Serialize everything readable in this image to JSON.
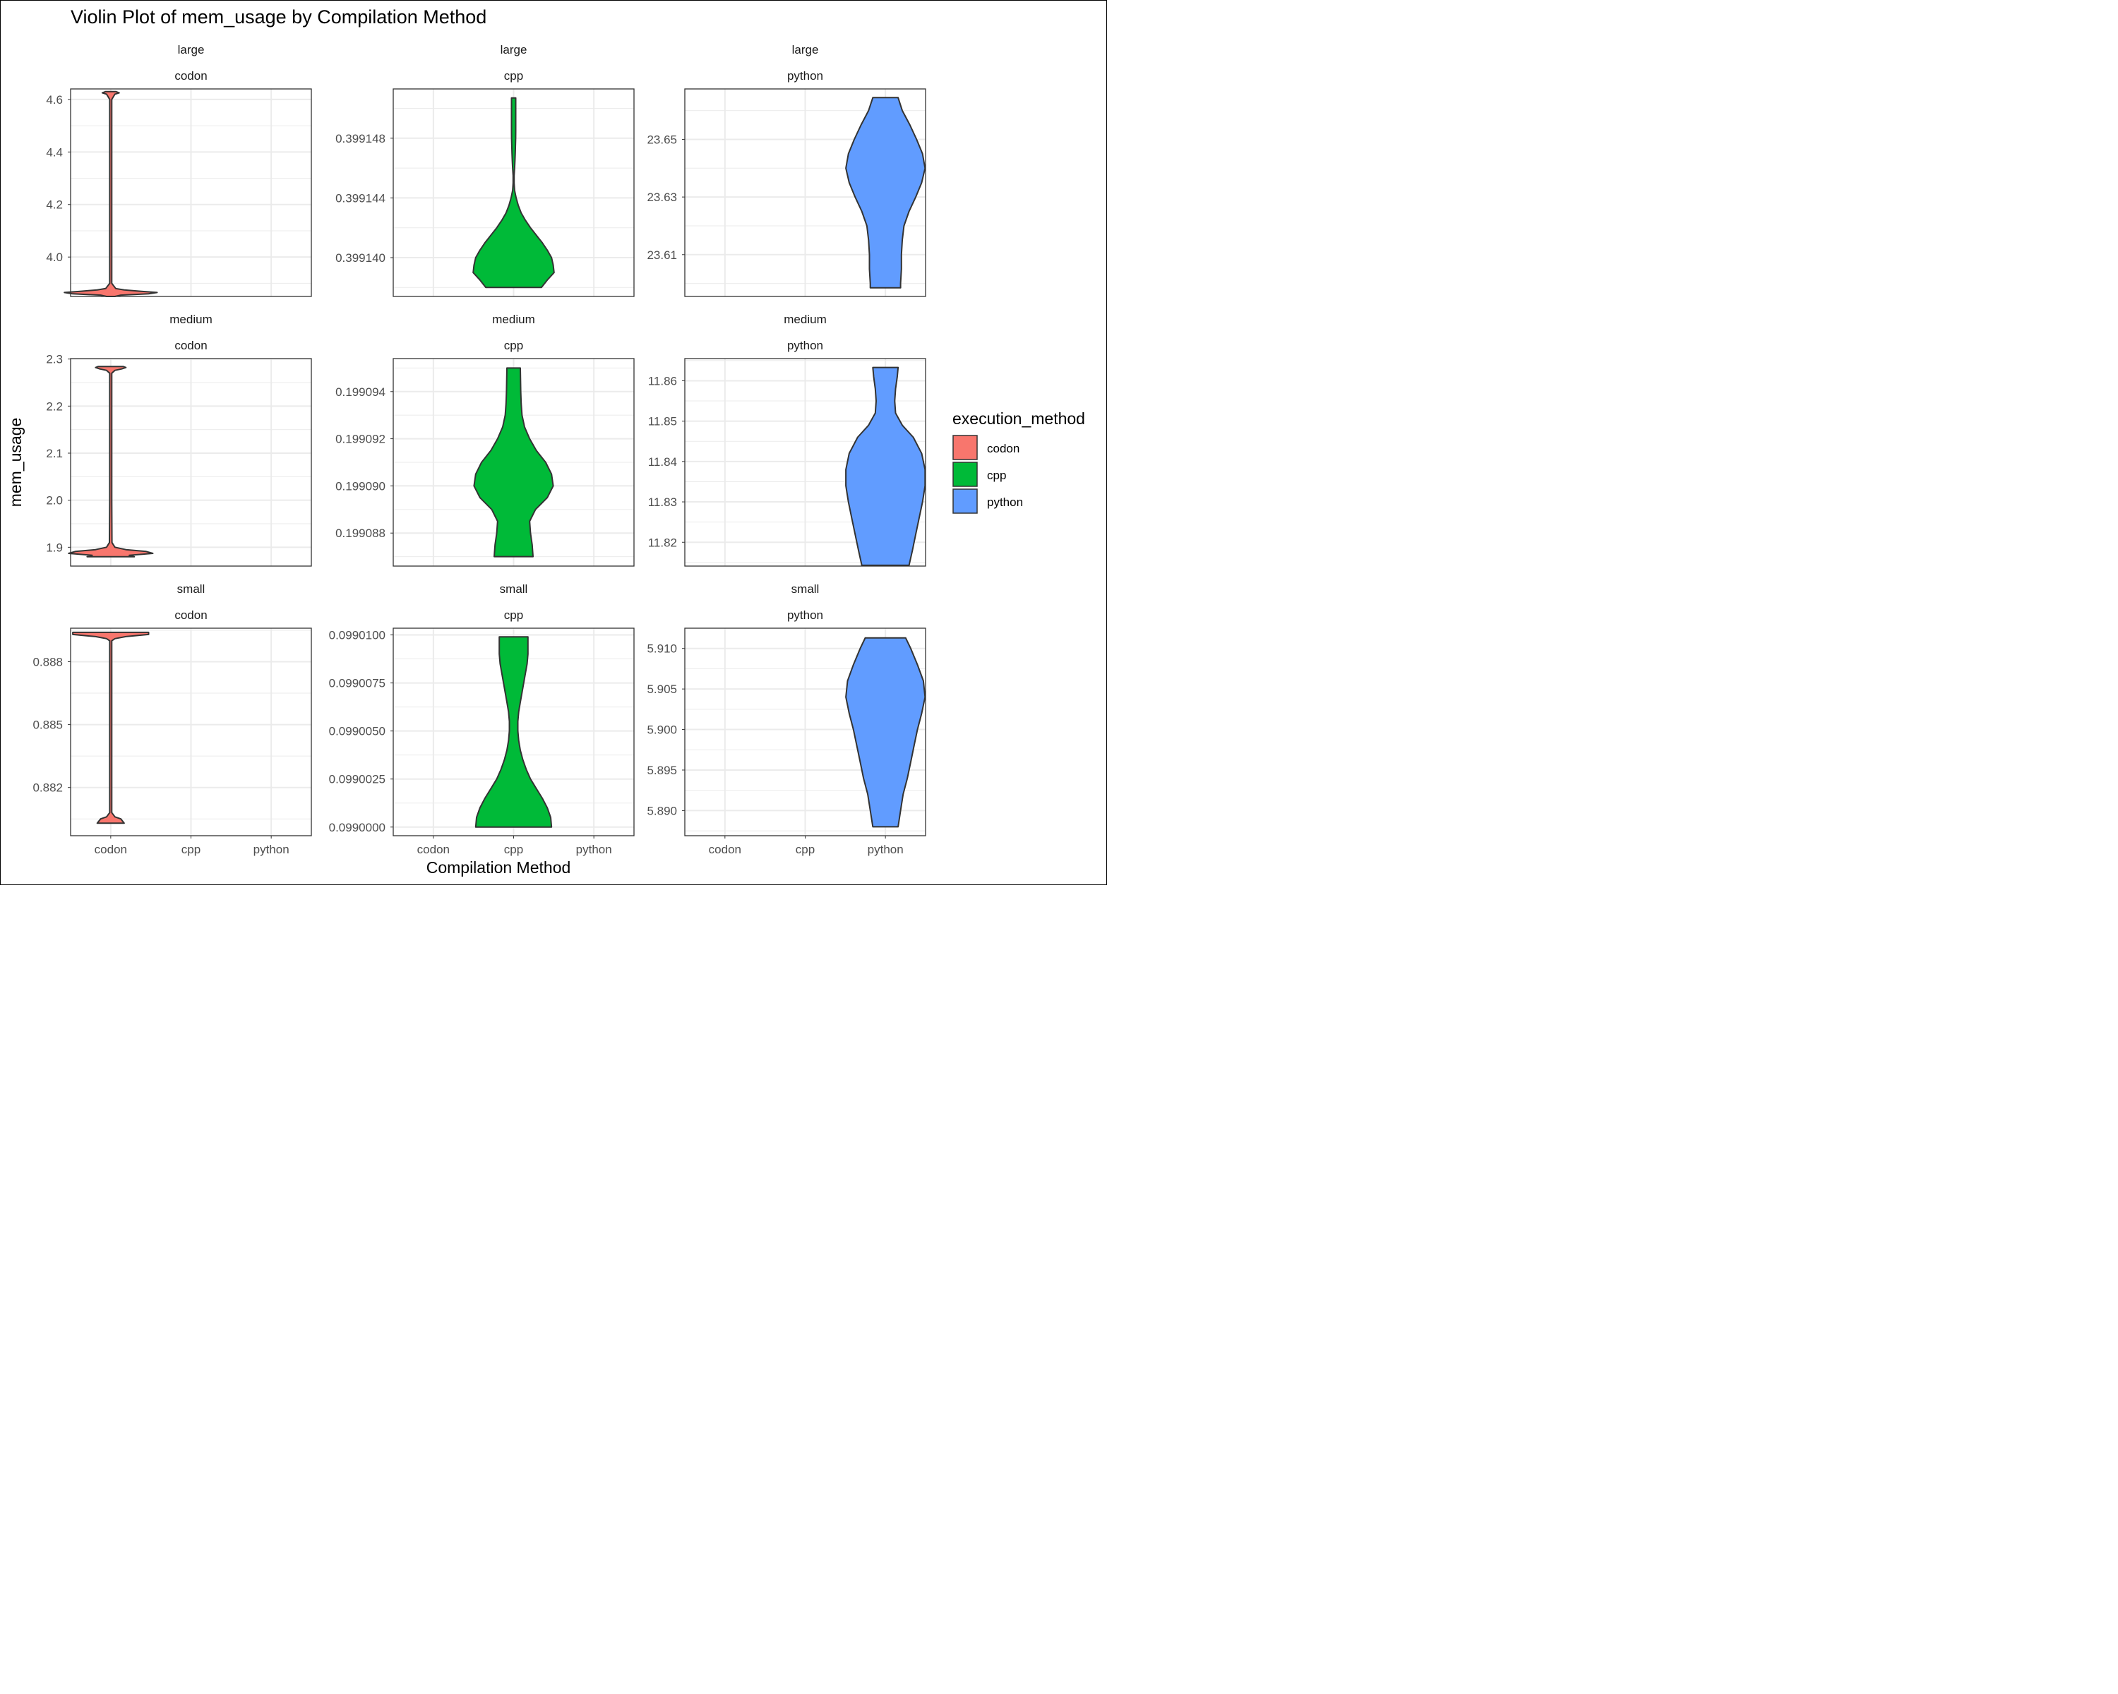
{
  "chart_data": {
    "type": "violin",
    "title": "Violin Plot of mem_usage by Compilation Method",
    "xlabel": "Compilation Method",
    "ylabel": "mem_usage",
    "categories": [
      "codon",
      "cpp",
      "python"
    ],
    "legend": {
      "title": "execution_method",
      "position": "right",
      "items": [
        {
          "label": "codon",
          "color": "#F8766D"
        },
        {
          "label": "cpp",
          "color": "#00BA38"
        },
        {
          "label": "python",
          "color": "#619CFF"
        }
      ]
    },
    "grid": true,
    "facets": [
      {
        "size": "large",
        "method": "codon",
        "color": "#F8766D",
        "yrange": [
          3.85,
          4.64
        ],
        "yticks": [
          "4.0",
          "4.2",
          "4.4",
          "4.6"
        ],
        "violin": {
          "ymin": 3.85,
          "ymax": 4.63,
          "profile": [
            [
              3.85,
              0.05
            ],
            [
              3.855,
              0.12
            ],
            [
              3.86,
              0.45
            ],
            [
              3.865,
              0.55
            ],
            [
              3.87,
              0.35
            ],
            [
              3.875,
              0.16
            ],
            [
              3.88,
              0.06
            ],
            [
              3.9,
              0.012
            ],
            [
              4.0,
              0.012
            ],
            [
              4.6,
              0.012
            ],
            [
              4.62,
              0.05
            ],
            [
              4.625,
              0.1
            ],
            [
              4.63,
              0.06
            ]
          ]
        }
      },
      {
        "size": "large",
        "method": "cpp",
        "color": "#00BA38",
        "yrange": [
          0.3991374,
          0.3991513
        ],
        "yticks": [
          "0.399140",
          "0.399144",
          "0.399148"
        ],
        "violin": {
          "ymin": 0.399138,
          "ymax": 0.3991507,
          "profile": [
            [
              0.399138,
              0.33
            ],
            [
              0.3991385,
              0.4
            ],
            [
              0.399139,
              0.48
            ],
            [
              0.3991395,
              0.47
            ],
            [
              0.39914,
              0.45
            ],
            [
              0.3991405,
              0.4
            ],
            [
              0.399141,
              0.34
            ],
            [
              0.3991415,
              0.27
            ],
            [
              0.399142,
              0.2
            ],
            [
              0.3991425,
              0.14
            ],
            [
              0.399143,
              0.09
            ],
            [
              0.3991435,
              0.055
            ],
            [
              0.399144,
              0.03
            ],
            [
              0.3991445,
              0.012
            ],
            [
              0.399145,
              0.003
            ],
            [
              0.3991455,
              -0.005
            ],
            [
              0.399146,
              -0.012
            ],
            [
              0.3991465,
              -0.016
            ],
            [
              0.399147,
              -0.019
            ],
            [
              0.3991475,
              -0.022
            ],
            [
              0.399148,
              -0.024
            ],
            [
              0.3991485,
              -0.025
            ],
            [
              0.399149,
              -0.025
            ],
            [
              0.3991495,
              -0.025
            ],
            [
              0.39915,
              -0.025
            ],
            [
              0.3991507,
              -0.025
            ]
          ],
          "center_shift": 0.0
        }
      },
      {
        "size": "large",
        "method": "python",
        "color": "#619CFF",
        "yrange": [
          23.5955,
          23.6675
        ],
        "yticks": [
          "23.61",
          "23.63",
          "23.65"
        ],
        "violin": {
          "ymin": 23.5985,
          "ymax": 23.6645,
          "profile": [
            [
              23.5985,
              0.18
            ],
            [
              23.6,
              0.18
            ],
            [
              23.605,
              0.19
            ],
            [
              23.61,
              0.19
            ],
            [
              23.615,
              0.2
            ],
            [
              23.62,
              0.22
            ],
            [
              23.625,
              0.28
            ],
            [
              23.63,
              0.36
            ],
            [
              23.635,
              0.43
            ],
            [
              23.64,
              0.47
            ],
            [
              23.645,
              0.44
            ],
            [
              23.65,
              0.37
            ],
            [
              23.655,
              0.29
            ],
            [
              23.66,
              0.2
            ],
            [
              23.6645,
              0.15
            ]
          ]
        }
      },
      {
        "size": "medium",
        "method": "codon",
        "color": "#F8766D",
        "yrange": [
          1.86,
          2.301
        ],
        "yticks": [
          "1.9",
          "2.0",
          "2.1",
          "2.2",
          "2.3"
        ],
        "violin": {
          "ymin": 1.88,
          "ymax": 2.284,
          "profile": [
            [
              1.88,
              0.28
            ],
            [
              1.883,
              0.22
            ],
            [
              1.887,
              0.5
            ],
            [
              1.891,
              0.42
            ],
            [
              1.895,
              0.18
            ],
            [
              1.9,
              0.05
            ],
            [
              1.91,
              0.015
            ],
            [
              2.0,
              0.012
            ],
            [
              2.27,
              0.012
            ],
            [
              2.276,
              0.05
            ],
            [
              2.279,
              0.13
            ],
            [
              2.282,
              0.18
            ],
            [
              2.284,
              0.15
            ]
          ]
        }
      },
      {
        "size": "medium",
        "method": "cpp",
        "color": "#00BA38",
        "yrange": [
          0.1990866,
          0.1990954
        ],
        "yticks": [
          "0.199088",
          "0.199090",
          "0.199092",
          "0.199094"
        ],
        "violin": {
          "ymin": 0.199087,
          "ymax": 0.199095,
          "profile": [
            [
              0.199087,
              0.23
            ],
            [
              0.1990875,
              0.22
            ],
            [
              0.199088,
              0.2
            ],
            [
              0.1990885,
              0.19
            ],
            [
              0.199089,
              0.26
            ],
            [
              0.1990895,
              0.4
            ],
            [
              0.19909,
              0.47
            ],
            [
              0.1990905,
              0.45
            ],
            [
              0.199091,
              0.38
            ],
            [
              0.1990915,
              0.27
            ],
            [
              0.199092,
              0.19
            ],
            [
              0.1990925,
              0.13
            ],
            [
              0.199093,
              0.1
            ],
            [
              0.1990935,
              0.09
            ],
            [
              0.199094,
              0.085
            ],
            [
              0.1990945,
              0.082
            ],
            [
              0.199095,
              0.08
            ]
          ]
        }
      },
      {
        "size": "medium",
        "method": "python",
        "color": "#619CFF",
        "yrange": [
          11.8141,
          11.8655
        ],
        "yticks": [
          "11.82",
          "11.83",
          "11.84",
          "11.85",
          "11.86"
        ],
        "violin": {
          "ymin": 11.8143,
          "ymax": 11.8633,
          "profile": [
            [
              11.8143,
              0.28
            ],
            [
              11.818,
              0.32
            ],
            [
              11.822,
              0.36
            ],
            [
              11.826,
              0.4
            ],
            [
              11.83,
              0.44
            ],
            [
              11.834,
              0.47
            ],
            [
              11.838,
              0.47
            ],
            [
              11.842,
              0.43
            ],
            [
              11.846,
              0.33
            ],
            [
              11.849,
              0.2
            ],
            [
              11.852,
              0.12
            ],
            [
              11.855,
              0.11
            ],
            [
              11.858,
              0.12
            ],
            [
              11.861,
              0.14
            ],
            [
              11.8633,
              0.15
            ]
          ]
        }
      },
      {
        "size": "small",
        "method": "codon",
        "color": "#F8766D",
        "yrange": [
          0.8797,
          0.8896
        ],
        "yticks": [
          "0.882",
          "0.885",
          "0.888"
        ],
        "violin": {
          "ymin": 0.8803,
          "ymax": 0.8894,
          "profile": [
            [
              0.8803,
              0.16
            ],
            [
              0.8805,
              0.12
            ],
            [
              0.8806,
              0.05
            ],
            [
              0.8808,
              0.012
            ],
            [
              0.885,
              0.012
            ],
            [
              0.889,
              0.012
            ],
            [
              0.8891,
              0.05
            ],
            [
              0.8892,
              0.18
            ],
            [
              0.8893,
              0.45
            ],
            [
              0.8894,
              0.45
            ]
          ]
        }
      },
      {
        "size": "small",
        "method": "cpp",
        "color": "#00BA38",
        "yrange": [
          0.09899955,
          0.09901035
        ],
        "yticks": [
          "0.0990000",
          "0.0990025",
          "0.0990050",
          "0.0990075",
          "0.0990100"
        ],
        "violin": {
          "ymin": 0.099,
          "ymax": 0.0990099,
          "profile": [
            [
              0.099,
              0.45
            ],
            [
              0.0990005,
              0.44
            ],
            [
              0.099001,
              0.4
            ],
            [
              0.0990015,
              0.34
            ],
            [
              0.099002,
              0.27
            ],
            [
              0.0990025,
              0.2
            ],
            [
              0.099003,
              0.15
            ],
            [
              0.0990035,
              0.11
            ],
            [
              0.099004,
              0.08
            ],
            [
              0.0990045,
              0.06
            ],
            [
              0.099005,
              0.05
            ],
            [
              0.0990055,
              0.05
            ],
            [
              0.099006,
              0.06
            ],
            [
              0.0990065,
              0.08
            ],
            [
              0.099007,
              0.1
            ],
            [
              0.0990075,
              0.12
            ],
            [
              0.099008,
              0.14
            ],
            [
              0.0990085,
              0.16
            ],
            [
              0.099009,
              0.17
            ],
            [
              0.0990099,
              0.17
            ]
          ]
        }
      },
      {
        "size": "small",
        "method": "python",
        "color": "#619CFF",
        "yrange": [
          5.8869,
          5.9125
        ],
        "yticks": [
          "5.890",
          "5.895",
          "5.900",
          "5.905",
          "5.910"
        ],
        "violin": {
          "ymin": 5.888,
          "ymax": 5.9113,
          "profile": [
            [
              5.888,
              0.15
            ],
            [
              5.89,
              0.18
            ],
            [
              5.892,
              0.21
            ],
            [
              5.894,
              0.26
            ],
            [
              5.896,
              0.3
            ],
            [
              5.898,
              0.34
            ],
            [
              5.9,
              0.38
            ],
            [
              5.902,
              0.43
            ],
            [
              5.904,
              0.47
            ],
            [
              5.906,
              0.45
            ],
            [
              5.908,
              0.38
            ],
            [
              5.91,
              0.3
            ],
            [
              5.9113,
              0.24
            ]
          ]
        }
      }
    ]
  }
}
